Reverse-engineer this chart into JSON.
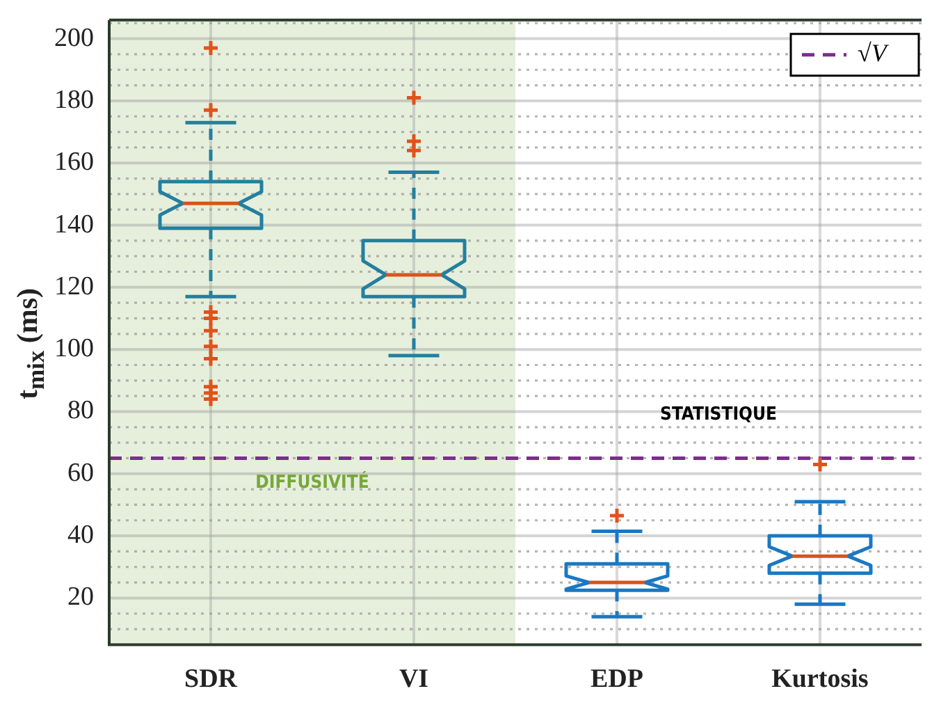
{
  "chart_data": {
    "type": "box",
    "ylabel": "t$_{mix}$ (ms)",
    "categories": [
      "SDR",
      "VI",
      "EDP",
      "Kurtosis"
    ],
    "boxes": [
      {
        "low": 117,
        "q1": 139,
        "median": 147,
        "q3": 154,
        "high": 173,
        "outliers": [
          197,
          177,
          112,
          110,
          106,
          101,
          97,
          88,
          86,
          84
        ]
      },
      {
        "low": 98,
        "q1": 117,
        "median": 124,
        "q3": 135,
        "high": 157,
        "outliers": [
          181,
          167,
          164
        ]
      },
      {
        "low": 14,
        "q1": 22.5,
        "median": 25,
        "q3": 31,
        "high": 41.5,
        "outliers": [
          46.5
        ]
      },
      {
        "low": 18,
        "q1": 28,
        "median": 33.5,
        "q3": 40,
        "high": 51,
        "outliers": [
          63
        ]
      }
    ],
    "colors": [
      "#237fa0",
      "#237fa0",
      "#1a78c2",
      "#1a78c2"
    ],
    "ylim": [
      5,
      206
    ],
    "yticks": [
      {
        "value": 10,
        "label": null
      },
      {
        "value": 15,
        "label": null
      },
      20,
      {
        "value": 25,
        "label": null
      },
      {
        "value": 30,
        "label": null
      },
      {
        "value": 35,
        "label": null
      },
      40,
      {
        "value": 45,
        "label": null
      },
      {
        "value": 50,
        "label": null
      },
      {
        "value": 55,
        "label": null
      },
      60,
      {
        "value": 65,
        "label": null
      },
      {
        "value": 70,
        "label": null
      },
      {
        "value": 75,
        "label": null
      },
      80,
      {
        "value": 85,
        "label": null
      },
      {
        "value": 90,
        "label": null
      },
      {
        "value": 95,
        "label": null
      },
      100,
      {
        "value": 105,
        "label": null
      },
      {
        "value": 110,
        "label": null
      },
      {
        "value": 115,
        "label": null
      },
      120,
      {
        "value": 125,
        "label": null
      },
      {
        "value": 130,
        "label": null
      },
      {
        "value": 135,
        "label": null
      },
      140,
      {
        "value": 145,
        "label": null
      },
      {
        "value": 150,
        "label": null
      },
      {
        "value": 155,
        "label": null
      },
      160,
      {
        "value": 165,
        "label": null
      },
      {
        "value": 170,
        "label": null
      },
      {
        "value": 175,
        "label": null
      },
      180,
      {
        "value": 185,
        "label": null
      },
      {
        "value": 190,
        "label": null
      },
      {
        "value": 195,
        "label": null
      },
      200,
      {
        "value": 205,
        "label": null
      }
    ],
    "grid": true,
    "marker": "cross",
    "legend": "top right",
    "ref_lines": [
      {
        "axis": "y",
        "value": 65,
        "label": "√V",
        "color": "#7b2d8e",
        "line_style": "dashed"
      }
    ],
    "bands": [
      {
        "axis": "x",
        "from": "SDR",
        "to": "VI",
        "label": "DIFFUSIVITÉ",
        "color": "#dde9cf"
      }
    ],
    "annotations": [
      "STATISTIQUE"
    ]
  }
}
